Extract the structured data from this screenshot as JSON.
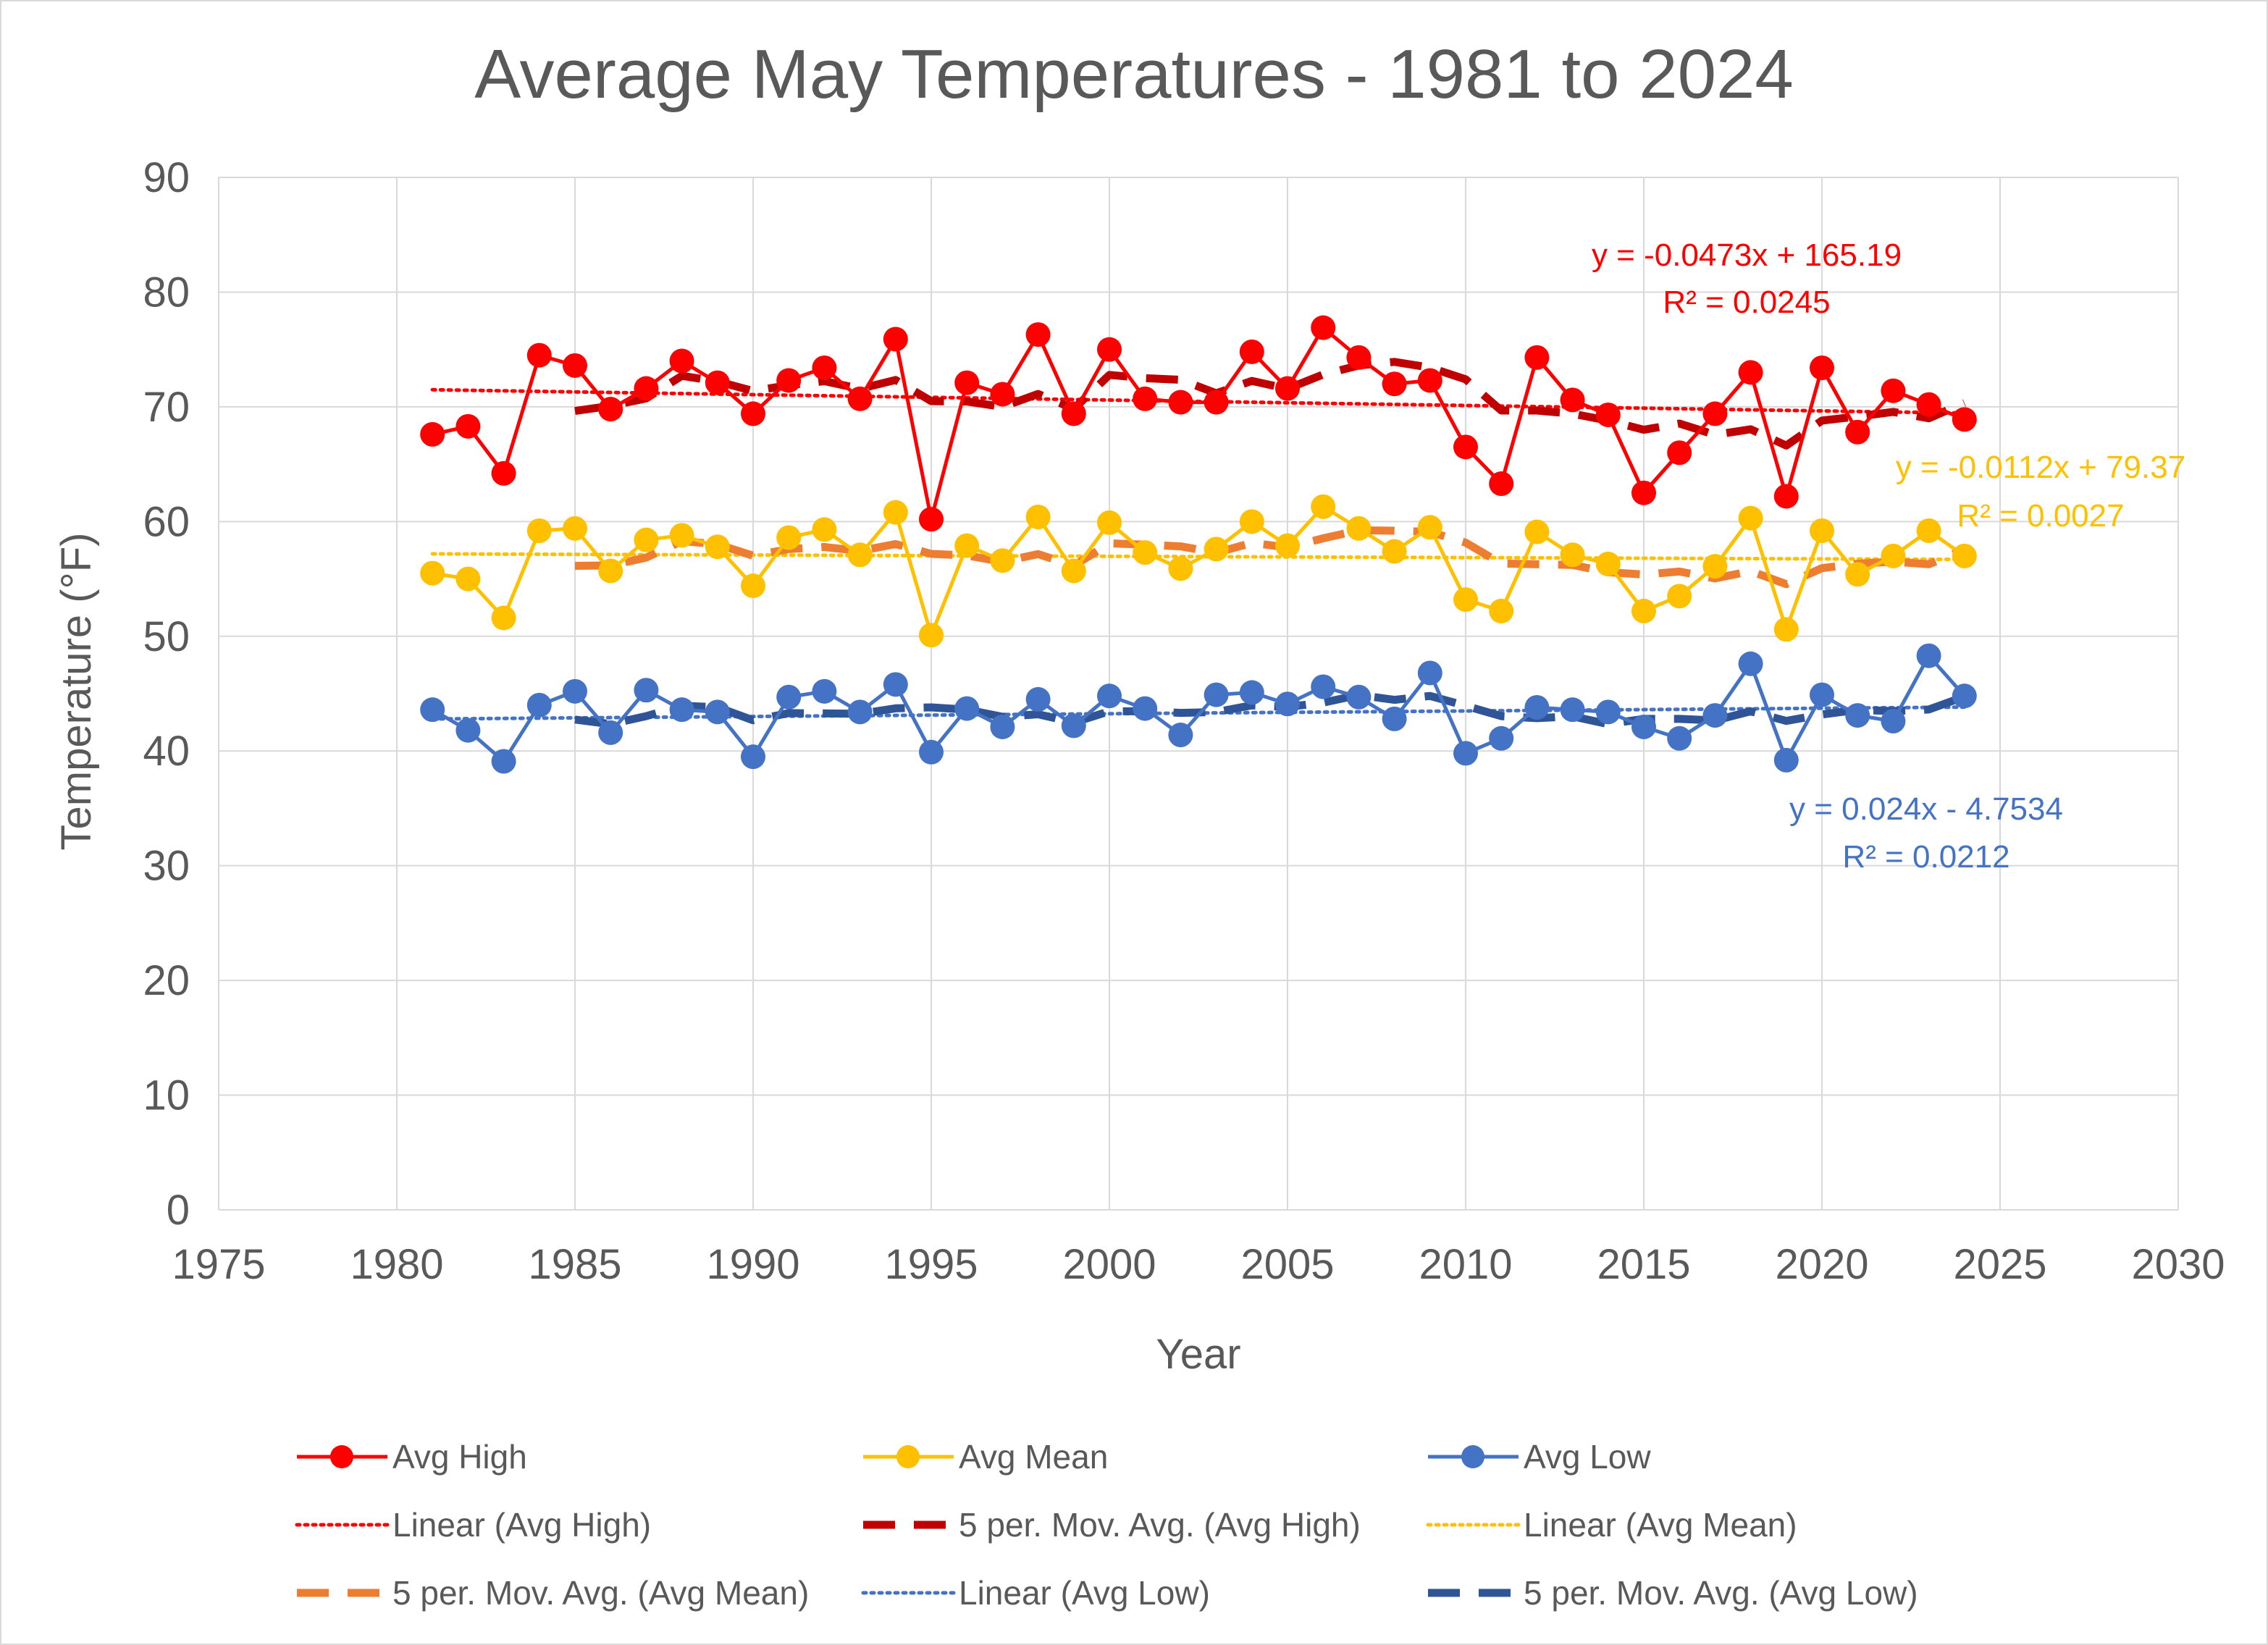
{
  "chart_data": {
    "type": "line",
    "title": "Average May Temperatures - 1981 to 2024",
    "xlabel": "Year",
    "ylabel": "Temperature (°F)",
    "xlim": [
      1975,
      2030
    ],
    "ylim": [
      0,
      90
    ],
    "x_ticks": [
      "1975",
      "1980",
      "1985",
      "1990",
      "1995",
      "2000",
      "2005",
      "2010",
      "2015",
      "2020",
      "2025",
      "2030"
    ],
    "y_ticks": [
      "0",
      "10",
      "20",
      "30",
      "40",
      "50",
      "60",
      "70",
      "80",
      "90"
    ],
    "grid": true,
    "legend_position": "bottom",
    "x": [
      1981,
      1982,
      1983,
      1984,
      1985,
      1986,
      1987,
      1988,
      1989,
      1990,
      1991,
      1992,
      1993,
      1994,
      1995,
      1996,
      1997,
      1998,
      1999,
      2000,
      2001,
      2002,
      2003,
      2004,
      2005,
      2006,
      2007,
      2008,
      2009,
      2010,
      2011,
      2012,
      2013,
      2014,
      2015,
      2016,
      2017,
      2018,
      2019,
      2020,
      2021,
      2022,
      2023,
      2024
    ],
    "series": [
      {
        "name": "Avg High",
        "color": "#ff0000",
        "values": [
          67.6,
          68.3,
          64.2,
          74.5,
          73.6,
          69.8,
          71.6,
          74.0,
          72.1,
          69.4,
          72.3,
          73.4,
          70.7,
          75.9,
          60.2,
          72.1,
          71.1,
          76.3,
          69.4,
          75.0,
          70.7,
          70.4,
          70.4,
          74.8,
          71.6,
          76.9,
          74.3,
          72.0,
          72.3,
          66.5,
          63.3,
          74.3,
          70.6,
          69.3,
          62.5,
          66.0,
          69.4,
          73.0,
          62.2,
          73.4,
          67.8,
          71.4,
          70.2,
          68.9
        ],
        "trend_label": "Linear (Avg High)",
        "trend_color": "#ff0000",
        "trend": {
          "slope": -0.0473,
          "intercept": 165.19
        },
        "equation": "y = -0.0473x + 165.19",
        "r2_text": "R² = 0.0245",
        "mov_avg_label": "5 per. Mov. Avg. (Avg High)",
        "mov_avg_color": "#c00000"
      },
      {
        "name": "Avg Mean",
        "color": "#ffc000",
        "values": [
          55.5,
          55.0,
          51.6,
          59.2,
          59.4,
          55.7,
          58.4,
          58.8,
          57.8,
          54.4,
          58.6,
          59.3,
          57.1,
          60.8,
          50.1,
          57.9,
          56.6,
          60.4,
          55.7,
          59.9,
          57.3,
          55.9,
          57.6,
          60.0,
          57.9,
          61.3,
          59.4,
          57.4,
          59.5,
          53.2,
          52.2,
          59.1,
          57.1,
          56.3,
          52.2,
          53.5,
          56.1,
          60.3,
          50.6,
          59.2,
          55.4,
          57.0,
          59.2,
          57.0
        ],
        "trend_label": "Linear (Avg Mean)",
        "trend_color": "#ffc000",
        "trend": {
          "slope": -0.0112,
          "intercept": 79.37
        },
        "equation": "y = -0.0112x + 79.37",
        "r2_text": "R² = 0.0027",
        "mov_avg_label": "5 per. Mov. Avg. (Avg Mean)",
        "mov_avg_color": "#ed7d31"
      },
      {
        "name": "Avg Low",
        "color": "#4472c4",
        "values": [
          43.6,
          41.8,
          39.1,
          44.0,
          45.2,
          41.6,
          45.3,
          43.6,
          43.4,
          39.5,
          44.7,
          45.2,
          43.4,
          45.8,
          39.9,
          43.7,
          42.1,
          44.5,
          42.2,
          44.8,
          43.7,
          41.4,
          44.9,
          45.1,
          44.1,
          45.6,
          44.7,
          42.8,
          46.8,
          39.8,
          41.1,
          43.8,
          43.6,
          43.4,
          42.1,
          41.1,
          43.1,
          47.6,
          39.2,
          44.9,
          43.1,
          42.6,
          48.3,
          44.8
        ],
        "trend_label": "Linear (Avg Low)",
        "trend_color": "#4472c4",
        "trend": {
          "slope": 0.024,
          "intercept": -4.7534
        },
        "equation": "y = 0.024x - 4.7534",
        "r2_text": "R² = 0.0212",
        "mov_avg_label": "5 per. Mov. Avg. (Avg Low)",
        "mov_avg_color": "#2f5597"
      }
    ],
    "moving_average_period": 5
  }
}
